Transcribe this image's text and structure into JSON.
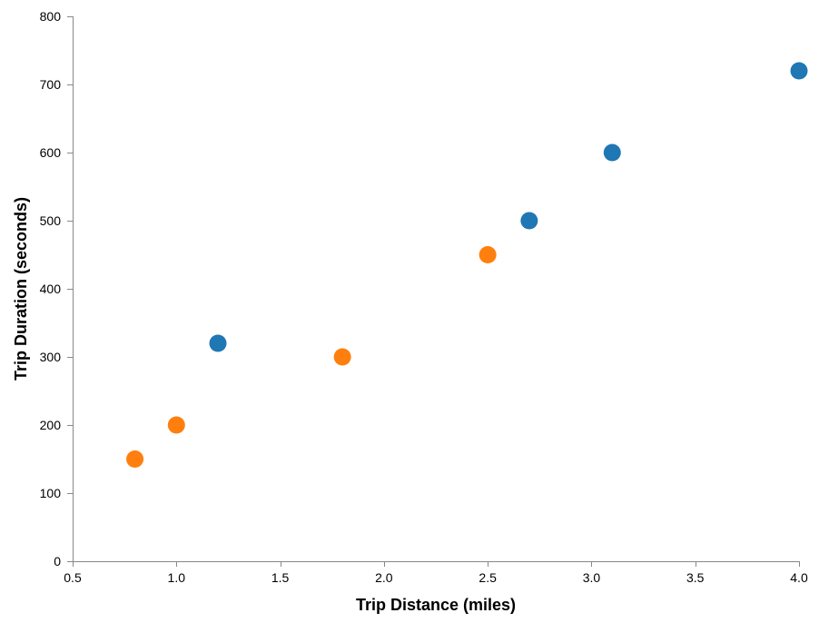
{
  "chart_data": {
    "type": "scatter",
    "title": "",
    "xlabel": "Trip Distance (miles)",
    "ylabel": "Trip Duration (seconds)",
    "xlim": [
      0.5,
      4.0
    ],
    "ylim": [
      0,
      800
    ],
    "x_ticks": [
      0.5,
      1.0,
      1.5,
      2.0,
      2.5,
      3.0,
      3.5,
      4.0
    ],
    "x_tick_labels": [
      "0.5",
      "1.0",
      "1.5",
      "2.0",
      "2.5",
      "3.0",
      "3.5",
      "4.0"
    ],
    "y_ticks": [
      0,
      100,
      200,
      300,
      400,
      500,
      600,
      700,
      800
    ],
    "y_tick_labels": [
      "0",
      "100",
      "200",
      "300",
      "400",
      "500",
      "600",
      "700",
      "800"
    ],
    "grid": false,
    "legend": "none",
    "series": [
      {
        "color": "#1f77b4",
        "points": [
          {
            "x": 1.2,
            "y": 320
          },
          {
            "x": 2.7,
            "y": 500
          },
          {
            "x": 3.1,
            "y": 600
          },
          {
            "x": 4.0,
            "y": 720
          }
        ]
      },
      {
        "color": "#ff7f0e",
        "points": [
          {
            "x": 0.8,
            "y": 150
          },
          {
            "x": 1.0,
            "y": 200
          },
          {
            "x": 1.8,
            "y": 300
          },
          {
            "x": 2.5,
            "y": 450
          }
        ]
      }
    ]
  }
}
